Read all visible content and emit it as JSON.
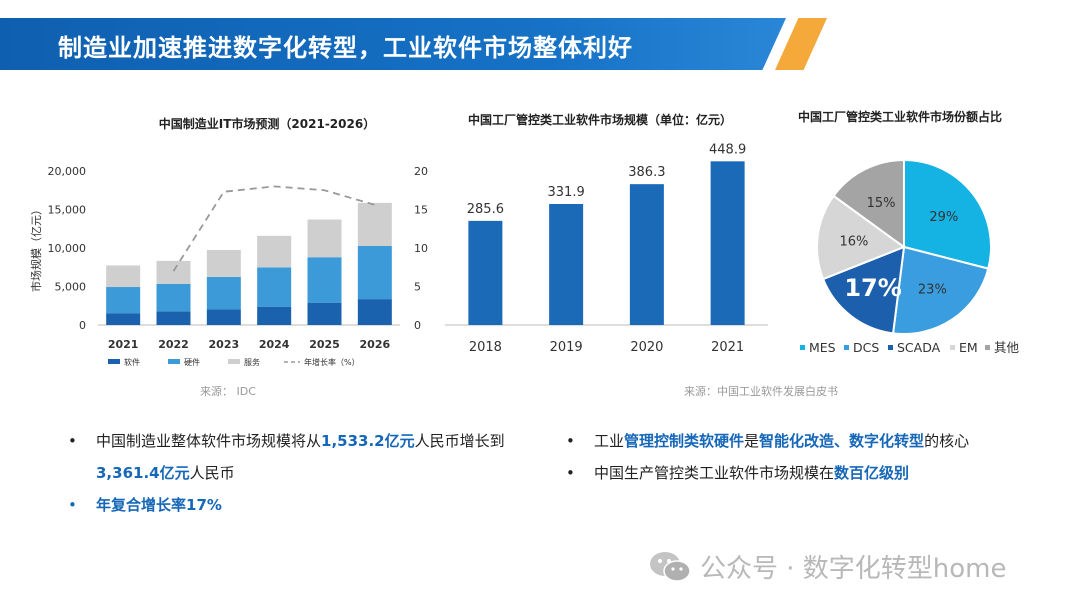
{
  "header": {
    "title": "制造业加速推进数字化转型，工业软件市场整体利好"
  },
  "chart_data": [
    {
      "type": "bar",
      "stacked": true,
      "title": "中国制造业IT市场预测（2021-2026）",
      "ylabel": "市场规模（亿元）",
      "xlabel": "",
      "categories": [
        "2021",
        "2022",
        "2023",
        "2024",
        "2025",
        "2026"
      ],
      "ylim": [
        0,
        20000
      ],
      "yticks": [
        "0",
        "5,000",
        "10,000",
        "15,000",
        "20,000"
      ],
      "y2lim": [
        0,
        20
      ],
      "y2ticks": [
        "0",
        "5",
        "10",
        "15",
        "20"
      ],
      "series": [
        {
          "name": "软件",
          "values": [
            1533,
            1780,
            2050,
            2380,
            2900,
            3361
          ],
          "color": "#1a62ad"
        },
        {
          "name": "硬件",
          "values": [
            3400,
            3550,
            4200,
            5100,
            5900,
            6900
          ],
          "color": "#3d9ad8"
        },
        {
          "name": "服务",
          "values": [
            2800,
            3000,
            3500,
            4100,
            4900,
            5600
          ],
          "color": "#cfcfcf"
        }
      ],
      "line_series": {
        "name": "年增长率（%）",
        "axis": "right",
        "values": [
          null,
          7,
          17.3,
          18,
          17.5,
          15.6
        ],
        "color": "#999999"
      },
      "legend": "bottom",
      "source": "来源： IDC"
    },
    {
      "type": "bar",
      "title": "中国工厂管控类工业软件市场规模（单位：亿元）",
      "categories": [
        "2018",
        "2019",
        "2020",
        "2021"
      ],
      "values": [
        285.6,
        331.9,
        386.3,
        448.9
      ],
      "value_labels": [
        "285.6",
        "331.9",
        "386.3",
        "448.9"
      ],
      "ylim": [
        0,
        480
      ],
      "color": "#1a6ab8",
      "source": "来源：中国工业软件发展白皮书"
    },
    {
      "type": "pie",
      "title": "中国工厂管控类工业软件市场份额占比",
      "slices": [
        {
          "name": "MES",
          "value": 29,
          "label": "29%",
          "color": "#14b3e4"
        },
        {
          "name": "DCS",
          "value": 23,
          "label": "23%",
          "color": "#3a9de0"
        },
        {
          "name": "SCADA",
          "value": 17,
          "label": "17%",
          "color": "#1c5fac"
        },
        {
          "name": "EM",
          "value": 16,
          "label": "16%",
          "color": "#d6d6d6"
        },
        {
          "name": "其他",
          "value": 15,
          "label": "15%",
          "color": "#a4a4a4"
        }
      ],
      "legend": "bottom"
    }
  ],
  "bullets_left": {
    "b1_a": "中国制造业整体软件市场规模将从",
    "b1_b": "1,533.2亿元",
    "b1_c": "人民币增长到",
    "b1_d": "3,361.4亿元",
    "b1_e": "人民币",
    "b2": "年复合增长率17%"
  },
  "bullets_right": {
    "b1_a": "工业",
    "b1_b": "管理控制类软硬件",
    "b1_c": "是",
    "b1_d": "智能化改造、数字化转型",
    "b1_e": "的核心",
    "b2_a": "中国生产管控类工业软件市场规模在",
    "b2_b": "数百亿级别"
  },
  "bullet_symbol": "•",
  "watermark": {
    "text": "公众号 · 数字化转型home",
    "icon": "wechat-icon"
  }
}
